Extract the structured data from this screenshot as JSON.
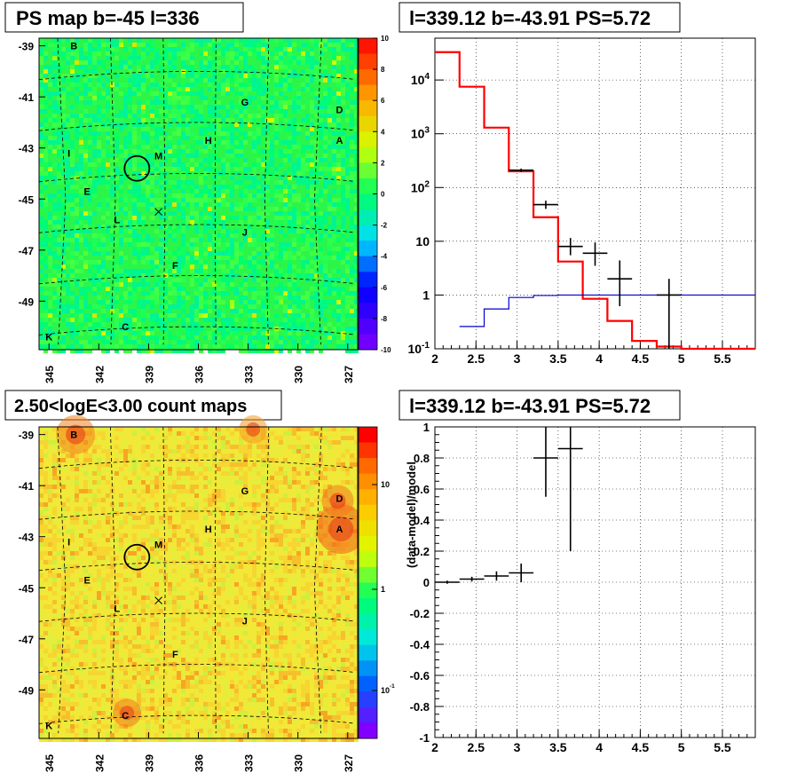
{
  "colors": {
    "model_line": "#ff0000",
    "background_line": "#0000cc",
    "data_points": "#000000",
    "grid": "#000000"
  },
  "panels": {
    "ps_map": {
      "title": "PS map b=-45 l=336",
      "colorbar_ticks": [
        "10",
        "8",
        "6",
        "4",
        "2",
        "0",
        "-2",
        "-4",
        "-6",
        "-8",
        "-10"
      ]
    },
    "count_map": {
      "title": "2.50<logE<3.00 count maps",
      "colorbar_ticks": [
        "10",
        "1",
        "10^-1"
      ]
    },
    "spectrum": {
      "title": "l=339.12 b=-43.91 PS=5.72"
    },
    "residual": {
      "title": "l=339.12 b=-43.91 PS=5.72"
    }
  },
  "map_axes": {
    "y_ticks": [
      "-39",
      "-41",
      "-43",
      "-45",
      "-47",
      "-49"
    ],
    "x_ticks": [
      "345",
      "342",
      "339",
      "336",
      "333",
      "330",
      "327"
    ]
  },
  "source_labels": [
    {
      "text": "B",
      "lon": 343.5,
      "lat": -39.0
    },
    {
      "text": "G",
      "lon": 333.2,
      "lat": -41.2
    },
    {
      "text": "D",
      "lon": 327.5,
      "lat": -41.5
    },
    {
      "text": "H",
      "lon": 335.4,
      "lat": -42.7
    },
    {
      "text": "A",
      "lon": 327.5,
      "lat": -42.7
    },
    {
      "text": "I",
      "lon": 343.8,
      "lat": -43.2
    },
    {
      "text": "M",
      "lon": 338.4,
      "lat": -43.3
    },
    {
      "text": "E",
      "lon": 342.7,
      "lat": -44.7
    },
    {
      "text": "L",
      "lon": 340.9,
      "lat": -45.8
    },
    {
      "text": "J",
      "lon": 333.2,
      "lat": -46.3
    },
    {
      "text": "F",
      "lon": 337.4,
      "lat": -47.6
    },
    {
      "text": "C",
      "lon": 340.4,
      "lat": -50.0
    },
    {
      "text": "K",
      "lon": 345.0,
      "lat": -50.4
    }
  ],
  "chart_data": [
    {
      "type": "heatmap",
      "title": "PS map b=-45 l=336",
      "x_ticks": [
        345,
        342,
        339,
        336,
        333,
        330,
        327
      ],
      "y_ticks": [
        -39,
        -41,
        -43,
        -45,
        -47,
        -49
      ],
      "colorbar_range": [
        -10,
        10
      ],
      "circle_marker": {
        "lon": 339.7,
        "lat": -43.8
      },
      "cross_marker": {
        "lon": 338.4,
        "lat": -45.5
      }
    },
    {
      "type": "heatmap",
      "title": "2.50<logE<3.00 count maps",
      "x_ticks": [
        345,
        342,
        339,
        336,
        333,
        330,
        327
      ],
      "y_ticks": [
        -39,
        -41,
        -43,
        -45,
        -47,
        -49
      ],
      "colorbar_scale": "log",
      "circle_marker": {
        "lon": 339.7,
        "lat": -43.8
      },
      "cross_marker": {
        "lon": 338.4,
        "lat": -45.5
      }
    },
    {
      "type": "line",
      "title": "l=339.12 b=-43.91 PS=5.72",
      "xlim": [
        2,
        5.9
      ],
      "ylim": [
        0.1,
        60000
      ],
      "yscale": "log",
      "x_ticks": [
        "2",
        "2.5",
        "3",
        "3.5",
        "4",
        "4.5",
        "5",
        "5.5"
      ],
      "y_ticks": [
        {
          "value": 0.1,
          "label": "10^-1"
        },
        {
          "value": 1,
          "label": "1"
        },
        {
          "value": 10,
          "label": "10"
        },
        {
          "value": 100,
          "label": "10^2"
        },
        {
          "value": 1000,
          "label": "10^3"
        },
        {
          "value": 10000,
          "label": "10^4"
        }
      ],
      "grid": true,
      "series": [
        {
          "kind": "step",
          "color": "#ff0000",
          "edges": [
            2,
            2.3,
            2.6,
            2.9,
            3.2,
            3.5,
            3.8,
            4.1,
            4.4,
            4.7,
            5.0,
            5.9
          ],
          "values": [
            33000,
            7500,
            1300,
            200,
            28,
            4.2,
            0.85,
            0.33,
            0.14,
            0.11,
            0.1
          ]
        },
        {
          "kind": "step",
          "color": "#0000cc",
          "edges": [
            2.3,
            2.6,
            2.9,
            3.2,
            3.5,
            5.9
          ],
          "values": [
            0.26,
            0.55,
            0.9,
            0.98,
            1.0
          ]
        },
        {
          "kind": "points",
          "color": "#000000",
          "points": [
            {
              "x": 3.05,
              "y": 210,
              "xerr": 0.15,
              "ylo": 195,
              "yhi": 225
            },
            {
              "x": 3.35,
              "y": 48,
              "xerr": 0.15,
              "ylo": 40,
              "yhi": 57
            },
            {
              "x": 3.65,
              "y": 8,
              "xerr": 0.15,
              "ylo": 5.5,
              "yhi": 11.5
            },
            {
              "x": 3.95,
              "y": 6,
              "xerr": 0.15,
              "ylo": 3.5,
              "yhi": 9.5
            },
            {
              "x": 4.25,
              "y": 2,
              "xerr": 0.15,
              "ylo": 0.62,
              "yhi": 4.4
            },
            {
              "x": 4.85,
              "y": 1,
              "xerr": 0.15,
              "ylo": 0.1,
              "yhi": 2.0
            }
          ]
        }
      ]
    },
    {
      "type": "scatter",
      "title": "l=339.12 b=-43.91 PS=5.72",
      "ylabel": "(data-model)/model",
      "xlim": [
        2,
        5.9
      ],
      "ylim": [
        -1,
        1
      ],
      "x_ticks": [
        "2",
        "2.5",
        "3",
        "3.5",
        "4",
        "4.5",
        "5",
        "5.5"
      ],
      "y_ticks": [
        "1",
        "0.8",
        "0.6",
        "0.4",
        "0.2",
        "0",
        "-0.2",
        "-0.4",
        "-0.6",
        "-0.8",
        "-1"
      ],
      "grid": true,
      "points": [
        {
          "x": 2.15,
          "y": 0.0,
          "xerr": 0.15,
          "yerr": 0.01
        },
        {
          "x": 2.45,
          "y": 0.02,
          "xerr": 0.15,
          "yerr": 0.015
        },
        {
          "x": 2.75,
          "y": 0.04,
          "xerr": 0.15,
          "yerr": 0.03
        },
        {
          "x": 3.05,
          "y": 0.06,
          "xerr": 0.15,
          "yerr": 0.06
        },
        {
          "x": 3.35,
          "y": 0.8,
          "xerr": 0.15,
          "ylo": 0.55,
          "yhi": 1.0
        },
        {
          "x": 3.65,
          "y": 0.86,
          "xerr": 0.15,
          "ylo": 0.2,
          "yhi": 1.0
        }
      ]
    }
  ]
}
